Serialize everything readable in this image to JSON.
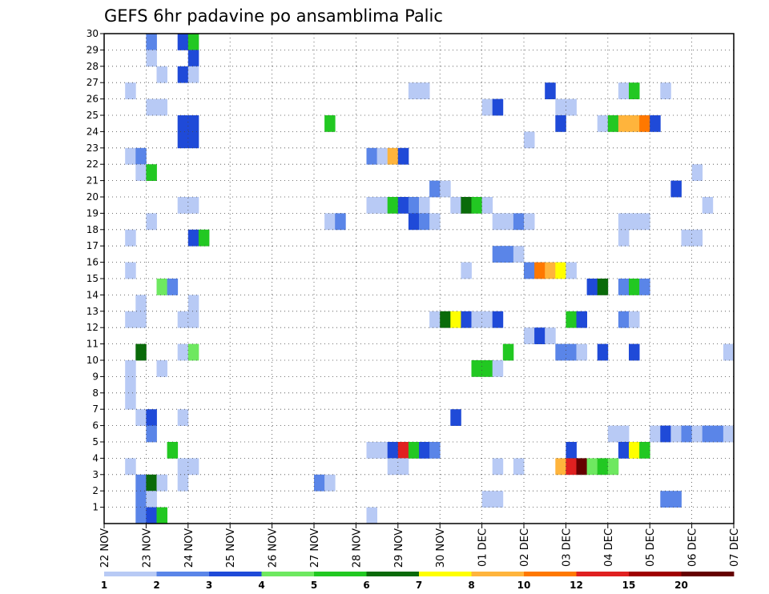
{
  "chart_data": {
    "type": "heatmap",
    "title": "GEFS 6hr padavine po ansamblima Palic",
    "xlabel": "",
    "ylabel": "",
    "x_tick_labels": [
      "22 NOV",
      "23 NOV",
      "24 NOV",
      "25 NOV",
      "26 NOV",
      "27 NOV",
      "28 NOV",
      "29 NOV",
      "30 NOV",
      "01 DEC",
      "02 DEC",
      "03 DEC",
      "04 DEC",
      "05 DEC",
      "06 DEC",
      "07 DEC"
    ],
    "y_tick_labels": [
      "1",
      "2",
      "3",
      "4",
      "5",
      "6",
      "7",
      "8",
      "9",
      "10",
      "11",
      "12",
      "13",
      "14",
      "15",
      "16",
      "17",
      "18",
      "19",
      "20",
      "21",
      "22",
      "23",
      "24",
      "25",
      "26",
      "27",
      "28",
      "29",
      "30"
    ],
    "x_range_steps": [
      0,
      60
    ],
    "steps_per_day": 4,
    "y_range": [
      0,
      30
    ],
    "grid": true,
    "colorbar": {
      "ticks": [
        "1",
        "2",
        "3",
        "4",
        "5",
        "6",
        "7",
        "8",
        "10",
        "12",
        "15",
        "20"
      ],
      "colors": [
        "#b8caf5",
        "#5a85e8",
        "#1f4ad8",
        "#6ee860",
        "#22c822",
        "#0a6b0a",
        "#ffff00",
        "#ffb43c",
        "#ff7800",
        "#e02020",
        "#a00000",
        "#650000"
      ]
    },
    "cells": [
      [
        29,
        4,
        2
      ],
      [
        29,
        7,
        3
      ],
      [
        29,
        8,
        5
      ],
      [
        28,
        4,
        1
      ],
      [
        28,
        8,
        3
      ],
      [
        27,
        5,
        1
      ],
      [
        27,
        7,
        3
      ],
      [
        27,
        8,
        1
      ],
      [
        26,
        2,
        1
      ],
      [
        26,
        29,
        1
      ],
      [
        26,
        30,
        1
      ],
      [
        26,
        42,
        3
      ],
      [
        26,
        49,
        1
      ],
      [
        26,
        50,
        5
      ],
      [
        26,
        53,
        1
      ],
      [
        25,
        4,
        1
      ],
      [
        25,
        5,
        1
      ],
      [
        25,
        36,
        1
      ],
      [
        25,
        37,
        3
      ],
      [
        25,
        43,
        1
      ],
      [
        25,
        44,
        1
      ],
      [
        24,
        7,
        3
      ],
      [
        24,
        8,
        3
      ],
      [
        24,
        21,
        5
      ],
      [
        24,
        43,
        3
      ],
      [
        24,
        47,
        1
      ],
      [
        24,
        48,
        5
      ],
      [
        24,
        49,
        8
      ],
      [
        24,
        50,
        8
      ],
      [
        24,
        51,
        9
      ],
      [
        24,
        52,
        3
      ],
      [
        23,
        7,
        3
      ],
      [
        23,
        8,
        3
      ],
      [
        23,
        40,
        1
      ],
      [
        22,
        2,
        1
      ],
      [
        22,
        3,
        2
      ],
      [
        22,
        25,
        2
      ],
      [
        22,
        26,
        1
      ],
      [
        22,
        27,
        8
      ],
      [
        22,
        28,
        3
      ],
      [
        21,
        3,
        1
      ],
      [
        21,
        4,
        5
      ],
      [
        21,
        56,
        1
      ],
      [
        20,
        31,
        2
      ],
      [
        20,
        32,
        1
      ],
      [
        20,
        54,
        3
      ],
      [
        19,
        7,
        1
      ],
      [
        19,
        8,
        1
      ],
      [
        19,
        25,
        1
      ],
      [
        19,
        26,
        1
      ],
      [
        19,
        27,
        5
      ],
      [
        19,
        28,
        3
      ],
      [
        19,
        29,
        2
      ],
      [
        19,
        30,
        1
      ],
      [
        19,
        33,
        1
      ],
      [
        19,
        34,
        6
      ],
      [
        19,
        35,
        5
      ],
      [
        19,
        36,
        1
      ],
      [
        19,
        57,
        1
      ],
      [
        18,
        4,
        1
      ],
      [
        18,
        21,
        1
      ],
      [
        18,
        22,
        2
      ],
      [
        18,
        29,
        3
      ],
      [
        18,
        30,
        2
      ],
      [
        18,
        31,
        1
      ],
      [
        18,
        37,
        1
      ],
      [
        18,
        38,
        1
      ],
      [
        18,
        39,
        2
      ],
      [
        18,
        40,
        1
      ],
      [
        18,
        49,
        1
      ],
      [
        18,
        50,
        1
      ],
      [
        18,
        51,
        1
      ],
      [
        17,
        2,
        1
      ],
      [
        17,
        8,
        3
      ],
      [
        17,
        9,
        5
      ],
      [
        17,
        49,
        1
      ],
      [
        17,
        55,
        1
      ],
      [
        17,
        56,
        1
      ],
      [
        16,
        37,
        2
      ],
      [
        16,
        38,
        2
      ],
      [
        16,
        39,
        1
      ],
      [
        15,
        2,
        1
      ],
      [
        15,
        34,
        1
      ],
      [
        15,
        40,
        2
      ],
      [
        15,
        41,
        9
      ],
      [
        15,
        42,
        8
      ],
      [
        15,
        43,
        7
      ],
      [
        15,
        44,
        1
      ],
      [
        14,
        5,
        4
      ],
      [
        14,
        6,
        2
      ],
      [
        14,
        46,
        3
      ],
      [
        14,
        47,
        6
      ],
      [
        14,
        49,
        2
      ],
      [
        14,
        50,
        5
      ],
      [
        14,
        51,
        2
      ],
      [
        13,
        3,
        1
      ],
      [
        13,
        8,
        1
      ],
      [
        12,
        2,
        1
      ],
      [
        12,
        3,
        1
      ],
      [
        12,
        7,
        1
      ],
      [
        12,
        8,
        1
      ],
      [
        12,
        31,
        1
      ],
      [
        12,
        32,
        6
      ],
      [
        12,
        33,
        7
      ],
      [
        12,
        34,
        3
      ],
      [
        12,
        35,
        1
      ],
      [
        12,
        36,
        1
      ],
      [
        12,
        37,
        3
      ],
      [
        12,
        44,
        5
      ],
      [
        12,
        45,
        3
      ],
      [
        12,
        49,
        2
      ],
      [
        12,
        50,
        1
      ],
      [
        11,
        40,
        1
      ],
      [
        11,
        41,
        3
      ],
      [
        11,
        42,
        1
      ],
      [
        10,
        3,
        6
      ],
      [
        10,
        7,
        1
      ],
      [
        10,
        8,
        4
      ],
      [
        10,
        38,
        5
      ],
      [
        10,
        43,
        2
      ],
      [
        10,
        44,
        2
      ],
      [
        10,
        45,
        1
      ],
      [
        10,
        47,
        3
      ],
      [
        10,
        50,
        3
      ],
      [
        10,
        59,
        1
      ],
      [
        10,
        60,
        2
      ],
      [
        9,
        2,
        1
      ],
      [
        9,
        5,
        1
      ],
      [
        9,
        35,
        5
      ],
      [
        9,
        36,
        5
      ],
      [
        9,
        37,
        1
      ],
      [
        8,
        2,
        1
      ],
      [
        7,
        2,
        1
      ],
      [
        6,
        3,
        1
      ],
      [
        6,
        4,
        3
      ],
      [
        6,
        7,
        1
      ],
      [
        6,
        33,
        3
      ],
      [
        5,
        4,
        2
      ],
      [
        5,
        48,
        1
      ],
      [
        5,
        49,
        1
      ],
      [
        5,
        52,
        1
      ],
      [
        5,
        53,
        3
      ],
      [
        5,
        54,
        1
      ],
      [
        5,
        55,
        2
      ],
      [
        5,
        56,
        1
      ],
      [
        5,
        57,
        2
      ],
      [
        5,
        58,
        2
      ],
      [
        5,
        59,
        1
      ],
      [
        4,
        6,
        5
      ],
      [
        4,
        25,
        1
      ],
      [
        4,
        26,
        1
      ],
      [
        4,
        27,
        3
      ],
      [
        4,
        28,
        10
      ],
      [
        4,
        29,
        5
      ],
      [
        4,
        30,
        3
      ],
      [
        4,
        31,
        2
      ],
      [
        4,
        44,
        3
      ],
      [
        4,
        49,
        3
      ],
      [
        4,
        50,
        7
      ],
      [
        4,
        51,
        5
      ],
      [
        3,
        2,
        1
      ],
      [
        3,
        7,
        1
      ],
      [
        3,
        8,
        1
      ],
      [
        3,
        27,
        1
      ],
      [
        3,
        28,
        1
      ],
      [
        3,
        37,
        1
      ],
      [
        3,
        39,
        1
      ],
      [
        3,
        43,
        8
      ],
      [
        3,
        44,
        10
      ],
      [
        3,
        45,
        12
      ],
      [
        3,
        46,
        4
      ],
      [
        3,
        47,
        5
      ],
      [
        3,
        48,
        4
      ],
      [
        2,
        3,
        2
      ],
      [
        2,
        4,
        6
      ],
      [
        2,
        5,
        1
      ],
      [
        2,
        7,
        1
      ],
      [
        2,
        20,
        2
      ],
      [
        2,
        21,
        1
      ],
      [
        1,
        3,
        2
      ],
      [
        1,
        4,
        1
      ],
      [
        1,
        36,
        1
      ],
      [
        1,
        37,
        1
      ],
      [
        1,
        53,
        2
      ],
      [
        1,
        54,
        2
      ],
      [
        0,
        3,
        2
      ],
      [
        0,
        4,
        3
      ],
      [
        0,
        5,
        5
      ],
      [
        0,
        25,
        1
      ]
    ]
  }
}
